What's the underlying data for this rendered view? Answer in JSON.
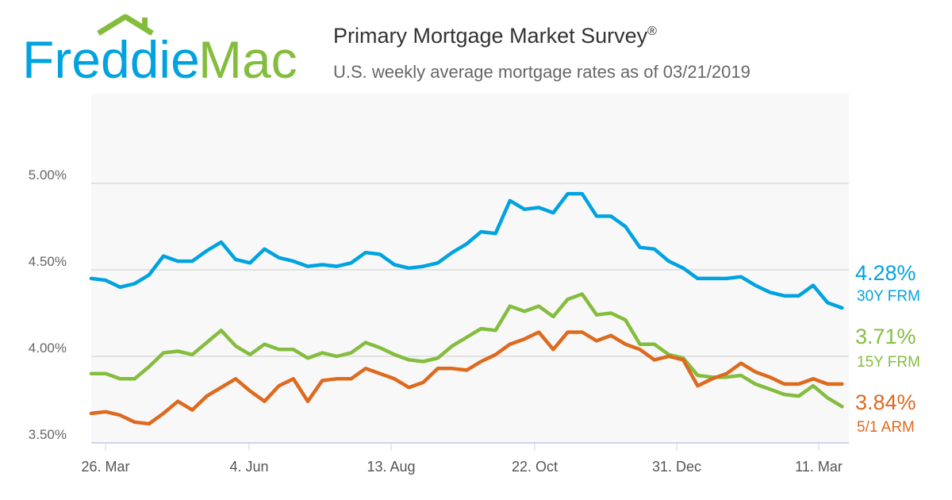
{
  "logo": {
    "text_left": "Freddie",
    "text_right": "Mac",
    "colors": {
      "blue": "#00a3e0",
      "green": "#84bd3e"
    }
  },
  "header": {
    "title": "Primary Mortgage Market Survey",
    "title_mark": "®",
    "subtitle": "U.S. weekly average mortgage rates as of 03/21/2019"
  },
  "chart_data": {
    "type": "line",
    "title": "Primary Mortgage Market Survey",
    "subtitle": "U.S. weekly average mortgage rates as of 03/21/2019",
    "x_start": "2018-03-22",
    "x_end": "2019-03-21",
    "x_interval": "weekly",
    "x_ticks": [
      "26. Mar",
      "4. Jun",
      "13. Aug",
      "22. Oct",
      "31. Dec",
      "11. Mar"
    ],
    "y_ticks": [
      "3.50%",
      "4.00%",
      "4.50%",
      "5.00%"
    ],
    "ylim": [
      3.5,
      5.5
    ],
    "grid": true,
    "series": [
      {
        "name": "30Y FRM",
        "last_label": "4.28%",
        "color": "#00a3e0",
        "values": [
          4.45,
          4.44,
          4.4,
          4.42,
          4.47,
          4.58,
          4.55,
          4.55,
          4.61,
          4.66,
          4.56,
          4.54,
          4.62,
          4.57,
          4.55,
          4.52,
          4.53,
          4.52,
          4.54,
          4.6,
          4.59,
          4.53,
          4.51,
          4.52,
          4.54,
          4.6,
          4.65,
          4.72,
          4.71,
          4.9,
          4.85,
          4.86,
          4.83,
          4.94,
          4.94,
          4.81,
          4.81,
          4.75,
          4.63,
          4.62,
          4.55,
          4.51,
          4.45,
          4.45,
          4.45,
          4.46,
          4.41,
          4.37,
          4.35,
          4.35,
          4.41,
          4.31,
          4.28
        ]
      },
      {
        "name": "15Y FRM",
        "last_label": "3.71%",
        "color": "#84bd3e",
        "values": [
          3.9,
          3.9,
          3.87,
          3.87,
          3.94,
          4.02,
          4.03,
          4.01,
          4.08,
          4.15,
          4.06,
          4.01,
          4.07,
          4.04,
          4.04,
          3.99,
          4.02,
          4.0,
          4.02,
          4.08,
          4.05,
          4.01,
          3.98,
          3.97,
          3.99,
          4.06,
          4.11,
          4.16,
          4.15,
          4.29,
          4.26,
          4.29,
          4.23,
          4.33,
          4.36,
          4.24,
          4.25,
          4.21,
          4.07,
          4.07,
          4.01,
          3.99,
          3.89,
          3.88,
          3.88,
          3.89,
          3.84,
          3.81,
          3.78,
          3.77,
          3.83,
          3.76,
          3.71
        ]
      },
      {
        "name": "5/1 ARM",
        "last_label": "3.84%",
        "color": "#dd6a1f",
        "values": [
          3.67,
          3.68,
          3.66,
          3.62,
          3.61,
          3.67,
          3.74,
          3.69,
          3.77,
          3.82,
          3.87,
          3.8,
          3.74,
          3.83,
          3.87,
          3.74,
          3.86,
          3.87,
          3.87,
          3.93,
          3.9,
          3.87,
          3.82,
          3.85,
          3.93,
          3.93,
          3.92,
          3.97,
          4.01,
          4.07,
          4.1,
          4.14,
          4.04,
          4.14,
          4.14,
          4.09,
          4.12,
          4.07,
          4.04,
          3.98,
          4.0,
          3.98,
          3.83,
          3.87,
          3.9,
          3.96,
          3.91,
          3.88,
          3.84,
          3.84,
          3.87,
          3.84,
          3.84
        ]
      }
    ]
  }
}
